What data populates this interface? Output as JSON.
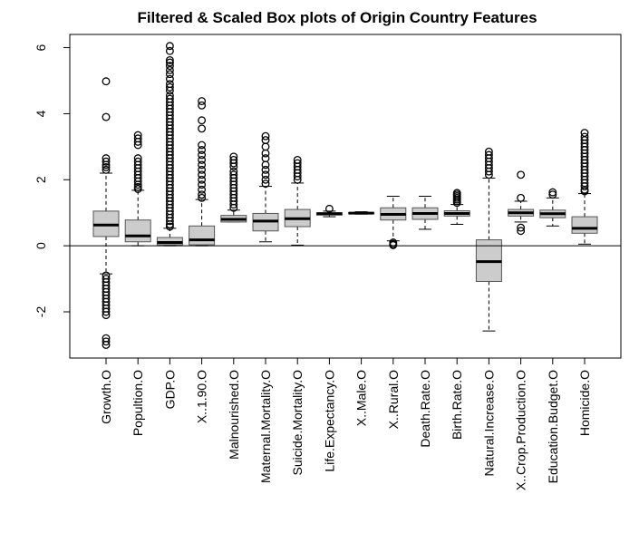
{
  "chart_data": {
    "type": "box",
    "title": "Filtered & Scaled Box plots of Origin Country Features",
    "xlabel": "",
    "ylabel": "",
    "ylim": [
      -3.4,
      6.4
    ],
    "yticks": [
      -2,
      0,
      2,
      4,
      6
    ],
    "grid": false,
    "legend": "none",
    "reference_line_y": 0,
    "colors": {
      "box_fill": "#cccccc",
      "stroke": "#000000",
      "background": "#ffffff"
    },
    "categories": [
      "Growth.O",
      "Popultion.O",
      "GDP.O",
      "X..1.90.O",
      "Malnourished.O",
      "Maternal.Mortality.O",
      "Suicide.Mortality.O",
      "Life.Expectancy.O",
      "X..Male.O",
      "X..Rural.O",
      "Death.Rate.O",
      "Birth.Rate.O",
      "Natural.Increase.O",
      "X..Crop.Production.O",
      "Education.Budget.O",
      "Homicide.O"
    ],
    "boxes": [
      {
        "whisker_low": -0.85,
        "q1": 0.28,
        "median": 0.63,
        "q3": 1.05,
        "whisker_high": 2.2,
        "outliers": [
          4.98,
          3.9,
          2.65,
          2.55,
          2.45,
          2.38,
          2.3,
          -0.9,
          -1.0,
          -1.1,
          -1.2,
          -1.3,
          -1.4,
          -1.5,
          -1.6,
          -1.7,
          -1.8,
          -1.9,
          -2.0,
          -2.1,
          -2.8,
          -2.9,
          -3.0
        ]
      },
      {
        "whisker_low": 0.0,
        "q1": 0.12,
        "median": 0.3,
        "q3": 0.78,
        "whisker_high": 1.68,
        "outliers": [
          3.35,
          3.25,
          3.15,
          3.05,
          2.65,
          2.55,
          2.45,
          2.35,
          2.25,
          2.15,
          2.05,
          1.95,
          1.85,
          1.78,
          1.72
        ]
      },
      {
        "whisker_low": 0.0,
        "q1": 0.03,
        "median": 0.1,
        "q3": 0.25,
        "whisker_high": 0.53,
        "outliers": [
          6.05,
          5.9,
          5.62,
          5.55,
          5.45,
          5.32,
          5.2,
          5.05,
          4.9,
          4.8,
          4.7,
          4.55,
          4.45,
          4.35,
          4.25,
          4.15,
          4.05,
          3.95,
          3.85,
          3.75,
          3.65,
          3.55,
          3.45,
          3.35,
          3.25,
          3.15,
          3.05,
          2.95,
          2.85,
          2.75,
          2.65,
          2.55,
          2.45,
          2.35,
          2.25,
          2.15,
          2.05,
          1.95,
          1.85,
          1.75,
          1.65,
          1.55,
          1.45,
          1.35,
          1.25,
          1.15,
          1.05,
          0.95,
          0.85,
          0.75,
          0.65,
          0.58
        ]
      },
      {
        "whisker_low": 0.0,
        "q1": 0.03,
        "median": 0.18,
        "q3": 0.6,
        "whisker_high": 1.4,
        "outliers": [
          4.38,
          4.25,
          3.8,
          3.55,
          3.05,
          2.9,
          2.75,
          2.6,
          2.45,
          2.3,
          2.15,
          2.0,
          1.85,
          1.7,
          1.55,
          1.45
        ]
      },
      {
        "whisker_low": 0.72,
        "q1": 0.72,
        "median": 0.8,
        "q3": 0.92,
        "whisker_high": 1.08,
        "outliers": [
          2.7,
          2.6,
          2.5,
          2.4,
          2.25,
          2.15,
          2.05,
          1.95,
          1.85,
          1.75,
          1.65,
          1.55,
          1.45,
          1.35,
          1.25,
          1.15
        ]
      },
      {
        "whisker_low": 0.12,
        "q1": 0.45,
        "median": 0.75,
        "q3": 0.98,
        "whisker_high": 1.8,
        "outliers": [
          3.32,
          3.2,
          3.0,
          2.8,
          2.65,
          2.45,
          2.3,
          2.15,
          2.0,
          1.88
        ]
      },
      {
        "whisker_low": 0.02,
        "q1": 0.58,
        "median": 0.82,
        "q3": 1.1,
        "whisker_high": 1.9,
        "outliers": [
          2.6,
          2.5,
          2.4,
          2.3,
          2.2,
          2.1,
          2.0
        ]
      },
      {
        "whisker_low": 0.88,
        "q1": 0.93,
        "median": 0.97,
        "q3": 1.0,
        "whisker_high": 1.05,
        "outliers": [
          1.12
        ]
      },
      {
        "whisker_low": 0.96,
        "q1": 0.98,
        "median": 0.99,
        "q3": 1.0,
        "whisker_high": 1.03,
        "outliers": []
      },
      {
        "whisker_low": 0.15,
        "q1": 0.78,
        "median": 0.95,
        "q3": 1.15,
        "whisker_high": 1.5,
        "outliers": [
          0.1,
          0.05,
          0.02
        ]
      },
      {
        "whisker_low": 0.5,
        "q1": 0.8,
        "median": 0.98,
        "q3": 1.15,
        "whisker_high": 1.5,
        "outliers": []
      },
      {
        "whisker_low": 0.65,
        "q1": 0.9,
        "median": 0.98,
        "q3": 1.06,
        "whisker_high": 1.25,
        "outliers": [
          1.6,
          1.55,
          1.5,
          1.45,
          1.4,
          1.35,
          1.3
        ]
      },
      {
        "whisker_low": -2.58,
        "q1": -1.08,
        "median": -0.48,
        "q3": 0.18,
        "whisker_high": 2.05,
        "outliers": [
          2.85,
          2.75,
          2.65,
          2.55,
          2.45,
          2.35,
          2.25,
          2.15
        ]
      },
      {
        "whisker_low": 0.72,
        "q1": 0.9,
        "median": 1.0,
        "q3": 1.1,
        "whisker_high": 1.35,
        "outliers": [
          2.15,
          1.45,
          0.55,
          0.45
        ]
      },
      {
        "whisker_low": 0.6,
        "q1": 0.85,
        "median": 0.97,
        "q3": 1.08,
        "whisker_high": 1.45,
        "outliers": [
          1.62,
          1.55
        ]
      },
      {
        "whisker_low": 0.05,
        "q1": 0.38,
        "median": 0.53,
        "q3": 0.88,
        "whisker_high": 1.58,
        "outliers": [
          3.42,
          3.3,
          3.2,
          3.1,
          3.0,
          2.9,
          2.8,
          2.7,
          2.6,
          2.5,
          2.4,
          2.3,
          2.2,
          2.1,
          2.0,
          1.9,
          1.8,
          1.7,
          1.65
        ]
      }
    ]
  }
}
